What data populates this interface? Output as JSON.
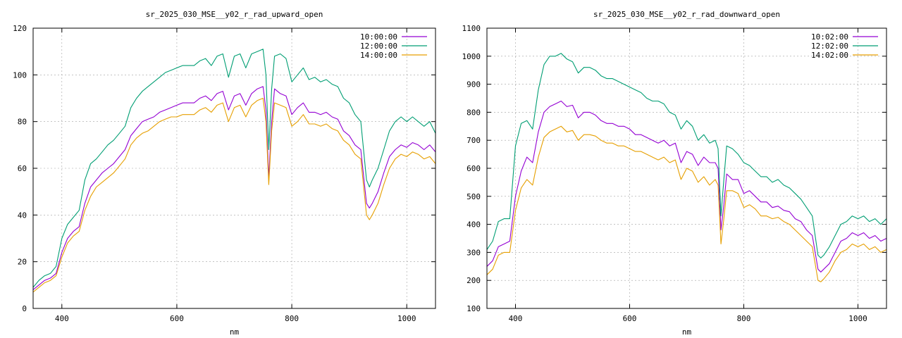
{
  "chart_data": [
    {
      "type": "line",
      "title": "sr_2025_030_MSE__y02_r_rad_upward_open",
      "xlabel": "nm",
      "ylabel": "",
      "xlim": [
        350,
        1050
      ],
      "ylim": [
        0,
        120
      ],
      "xticks": [
        400,
        600,
        800,
        1000
      ],
      "yticks": [
        0,
        20,
        40,
        60,
        80,
        100,
        120
      ],
      "grid": true,
      "legend_position": "top-right",
      "series": [
        {
          "name": "10:00:00",
          "color": "#9400d3",
          "x": [
            350,
            360,
            370,
            380,
            390,
            400,
            410,
            420,
            430,
            440,
            450,
            460,
            470,
            480,
            490,
            500,
            510,
            520,
            530,
            540,
            550,
            560,
            570,
            580,
            590,
            600,
            610,
            620,
            630,
            640,
            650,
            660,
            670,
            680,
            690,
            700,
            710,
            720,
            730,
            740,
            750,
            755,
            760,
            765,
            770,
            780,
            790,
            800,
            810,
            820,
            830,
            840,
            850,
            860,
            870,
            880,
            890,
            900,
            910,
            920,
            930,
            935,
            940,
            950,
            960,
            970,
            980,
            990,
            1000,
            1010,
            1020,
            1030,
            1040,
            1050
          ],
          "y": [
            8,
            10,
            12,
            13,
            15,
            24,
            30,
            33,
            35,
            45,
            52,
            55,
            58,
            60,
            62,
            65,
            68,
            74,
            77,
            80,
            81,
            82,
            84,
            85,
            86,
            87,
            88,
            88,
            88,
            90,
            91,
            89,
            92,
            93,
            85,
            91,
            92,
            87,
            92,
            94,
            95,
            85,
            56,
            80,
            94,
            92,
            91,
            83,
            86,
            88,
            84,
            84,
            83,
            84,
            82,
            81,
            76,
            74,
            70,
            68,
            45,
            43,
            45,
            50,
            58,
            65,
            68,
            70,
            69,
            71,
            70,
            68,
            70,
            67
          ]
        },
        {
          "name": "12:00:00",
          "color": "#009e73",
          "x": [
            350,
            360,
            370,
            380,
            390,
            400,
            410,
            420,
            430,
            440,
            450,
            460,
            470,
            480,
            490,
            500,
            510,
            520,
            530,
            540,
            550,
            560,
            570,
            580,
            590,
            600,
            610,
            620,
            630,
            640,
            650,
            660,
            670,
            680,
            690,
            700,
            710,
            720,
            730,
            740,
            750,
            755,
            760,
            765,
            770,
            780,
            790,
            800,
            810,
            820,
            830,
            840,
            850,
            860,
            870,
            880,
            890,
            900,
            910,
            920,
            930,
            935,
            940,
            950,
            960,
            970,
            980,
            990,
            1000,
            1010,
            1020,
            1030,
            1040,
            1050
          ],
          "y": [
            9,
            12,
            14,
            15,
            18,
            30,
            36,
            39,
            42,
            55,
            62,
            64,
            67,
            70,
            72,
            75,
            78,
            86,
            90,
            93,
            95,
            97,
            99,
            101,
            102,
            103,
            104,
            104,
            104,
            106,
            107,
            104,
            108,
            109,
            99,
            108,
            109,
            103,
            109,
            110,
            111,
            100,
            68,
            94,
            108,
            109,
            107,
            97,
            100,
            103,
            98,
            99,
            97,
            98,
            96,
            95,
            90,
            88,
            83,
            80,
            55,
            52,
            55,
            60,
            68,
            76,
            80,
            82,
            80,
            82,
            80,
            78,
            80,
            75
          ]
        },
        {
          "name": "14:00:00",
          "color": "#e69f00",
          "x": [
            350,
            360,
            370,
            380,
            390,
            400,
            410,
            420,
            430,
            440,
            450,
            460,
            470,
            480,
            490,
            500,
            510,
            520,
            530,
            540,
            550,
            560,
            570,
            580,
            590,
            600,
            610,
            620,
            630,
            640,
            650,
            660,
            670,
            680,
            690,
            700,
            710,
            720,
            730,
            740,
            750,
            755,
            760,
            765,
            770,
            780,
            790,
            800,
            810,
            820,
            830,
            840,
            850,
            860,
            870,
            880,
            890,
            900,
            910,
            920,
            930,
            935,
            940,
            950,
            960,
            970,
            980,
            990,
            1000,
            1010,
            1020,
            1030,
            1040,
            1050
          ],
          "y": [
            7,
            9,
            11,
            12,
            14,
            22,
            28,
            31,
            33,
            42,
            48,
            52,
            54,
            56,
            58,
            61,
            64,
            70,
            73,
            75,
            76,
            78,
            80,
            81,
            82,
            82,
            83,
            83,
            83,
            85,
            86,
            84,
            87,
            88,
            80,
            86,
            87,
            82,
            87,
            89,
            90,
            80,
            53,
            76,
            88,
            87,
            86,
            78,
            80,
            83,
            79,
            79,
            78,
            79,
            77,
            76,
            72,
            70,
            66,
            64,
            40,
            38,
            40,
            45,
            53,
            60,
            64,
            66,
            65,
            67,
            66,
            64,
            65,
            62
          ]
        }
      ]
    },
    {
      "type": "line",
      "title": "sr_2025_030_MSE__y02_r_rad_downward_open",
      "xlabel": "nm",
      "ylabel": "",
      "xlim": [
        350,
        1050
      ],
      "ylim": [
        100,
        1100
      ],
      "xticks": [
        400,
        600,
        800,
        1000
      ],
      "yticks": [
        100,
        200,
        300,
        400,
        500,
        600,
        700,
        800,
        900,
        1000,
        1100
      ],
      "grid": true,
      "legend_position": "top-right",
      "series": [
        {
          "name": "10:02:00",
          "color": "#9400d3",
          "x": [
            350,
            360,
            370,
            380,
            390,
            400,
            410,
            420,
            430,
            440,
            450,
            460,
            470,
            480,
            490,
            500,
            510,
            520,
            530,
            540,
            550,
            560,
            570,
            580,
            590,
            600,
            610,
            620,
            630,
            640,
            650,
            660,
            670,
            680,
            690,
            700,
            710,
            720,
            730,
            740,
            750,
            755,
            760,
            765,
            770,
            780,
            790,
            800,
            810,
            820,
            830,
            840,
            850,
            860,
            870,
            880,
            890,
            900,
            910,
            920,
            930,
            935,
            940,
            950,
            960,
            970,
            980,
            990,
            1000,
            1010,
            1020,
            1030,
            1040,
            1050
          ],
          "y": [
            250,
            270,
            320,
            330,
            340,
            500,
            590,
            640,
            620,
            730,
            800,
            820,
            830,
            840,
            820,
            825,
            780,
            800,
            800,
            790,
            770,
            760,
            760,
            750,
            750,
            740,
            720,
            720,
            710,
            700,
            690,
            700,
            680,
            690,
            620,
            660,
            650,
            610,
            640,
            620,
            620,
            600,
            380,
            470,
            580,
            560,
            560,
            510,
            520,
            500,
            480,
            480,
            460,
            465,
            450,
            445,
            420,
            410,
            380,
            360,
            240,
            230,
            240,
            260,
            300,
            340,
            350,
            370,
            360,
            370,
            350,
            360,
            340,
            350
          ]
        },
        {
          "name": "12:02:00",
          "color": "#009e73",
          "x": [
            350,
            360,
            370,
            380,
            390,
            400,
            410,
            420,
            430,
            440,
            450,
            460,
            470,
            480,
            490,
            500,
            510,
            520,
            530,
            540,
            550,
            560,
            570,
            580,
            590,
            600,
            610,
            620,
            630,
            640,
            650,
            660,
            670,
            680,
            690,
            700,
            710,
            720,
            730,
            740,
            750,
            755,
            760,
            765,
            770,
            780,
            790,
            800,
            810,
            820,
            830,
            840,
            850,
            860,
            870,
            880,
            890,
            900,
            910,
            920,
            930,
            935,
            940,
            950,
            960,
            970,
            980,
            990,
            1000,
            1010,
            1020,
            1030,
            1040,
            1050
          ],
          "y": [
            310,
            340,
            410,
            420,
            420,
            680,
            760,
            770,
            740,
            880,
            970,
            1000,
            1000,
            1010,
            990,
            980,
            940,
            960,
            960,
            950,
            930,
            920,
            920,
            910,
            900,
            890,
            880,
            870,
            850,
            840,
            840,
            830,
            800,
            790,
            740,
            770,
            750,
            700,
            720,
            690,
            700,
            670,
            430,
            560,
            680,
            670,
            650,
            620,
            610,
            590,
            570,
            570,
            550,
            560,
            540,
            530,
            510,
            490,
            460,
            430,
            290,
            280,
            290,
            320,
            360,
            400,
            410,
            430,
            420,
            430,
            410,
            420,
            400,
            420
          ]
        },
        {
          "name": "14:02:00",
          "color": "#e69f00",
          "x": [
            350,
            360,
            370,
            380,
            390,
            400,
            410,
            420,
            430,
            440,
            450,
            460,
            470,
            480,
            490,
            500,
            510,
            520,
            530,
            540,
            550,
            560,
            570,
            580,
            590,
            600,
            610,
            620,
            630,
            640,
            650,
            660,
            670,
            680,
            690,
            700,
            710,
            720,
            730,
            740,
            750,
            755,
            760,
            765,
            770,
            780,
            790,
            800,
            810,
            820,
            830,
            840,
            850,
            860,
            870,
            880,
            890,
            900,
            910,
            920,
            930,
            935,
            940,
            950,
            960,
            970,
            980,
            990,
            1000,
            1010,
            1020,
            1030,
            1040,
            1050
          ],
          "y": [
            220,
            240,
            290,
            300,
            300,
            450,
            530,
            560,
            540,
            640,
            710,
            730,
            740,
            750,
            730,
            735,
            700,
            720,
            720,
            715,
            700,
            690,
            690,
            680,
            680,
            670,
            660,
            660,
            650,
            640,
            630,
            640,
            620,
            630,
            560,
            600,
            590,
            550,
            570,
            540,
            560,
            540,
            330,
            420,
            520,
            520,
            510,
            460,
            470,
            455,
            430,
            430,
            420,
            425,
            410,
            400,
            380,
            360,
            340,
            320,
            200,
            195,
            205,
            230,
            270,
            300,
            310,
            330,
            320,
            330,
            310,
            320,
            300,
            310
          ]
        }
      ]
    }
  ]
}
